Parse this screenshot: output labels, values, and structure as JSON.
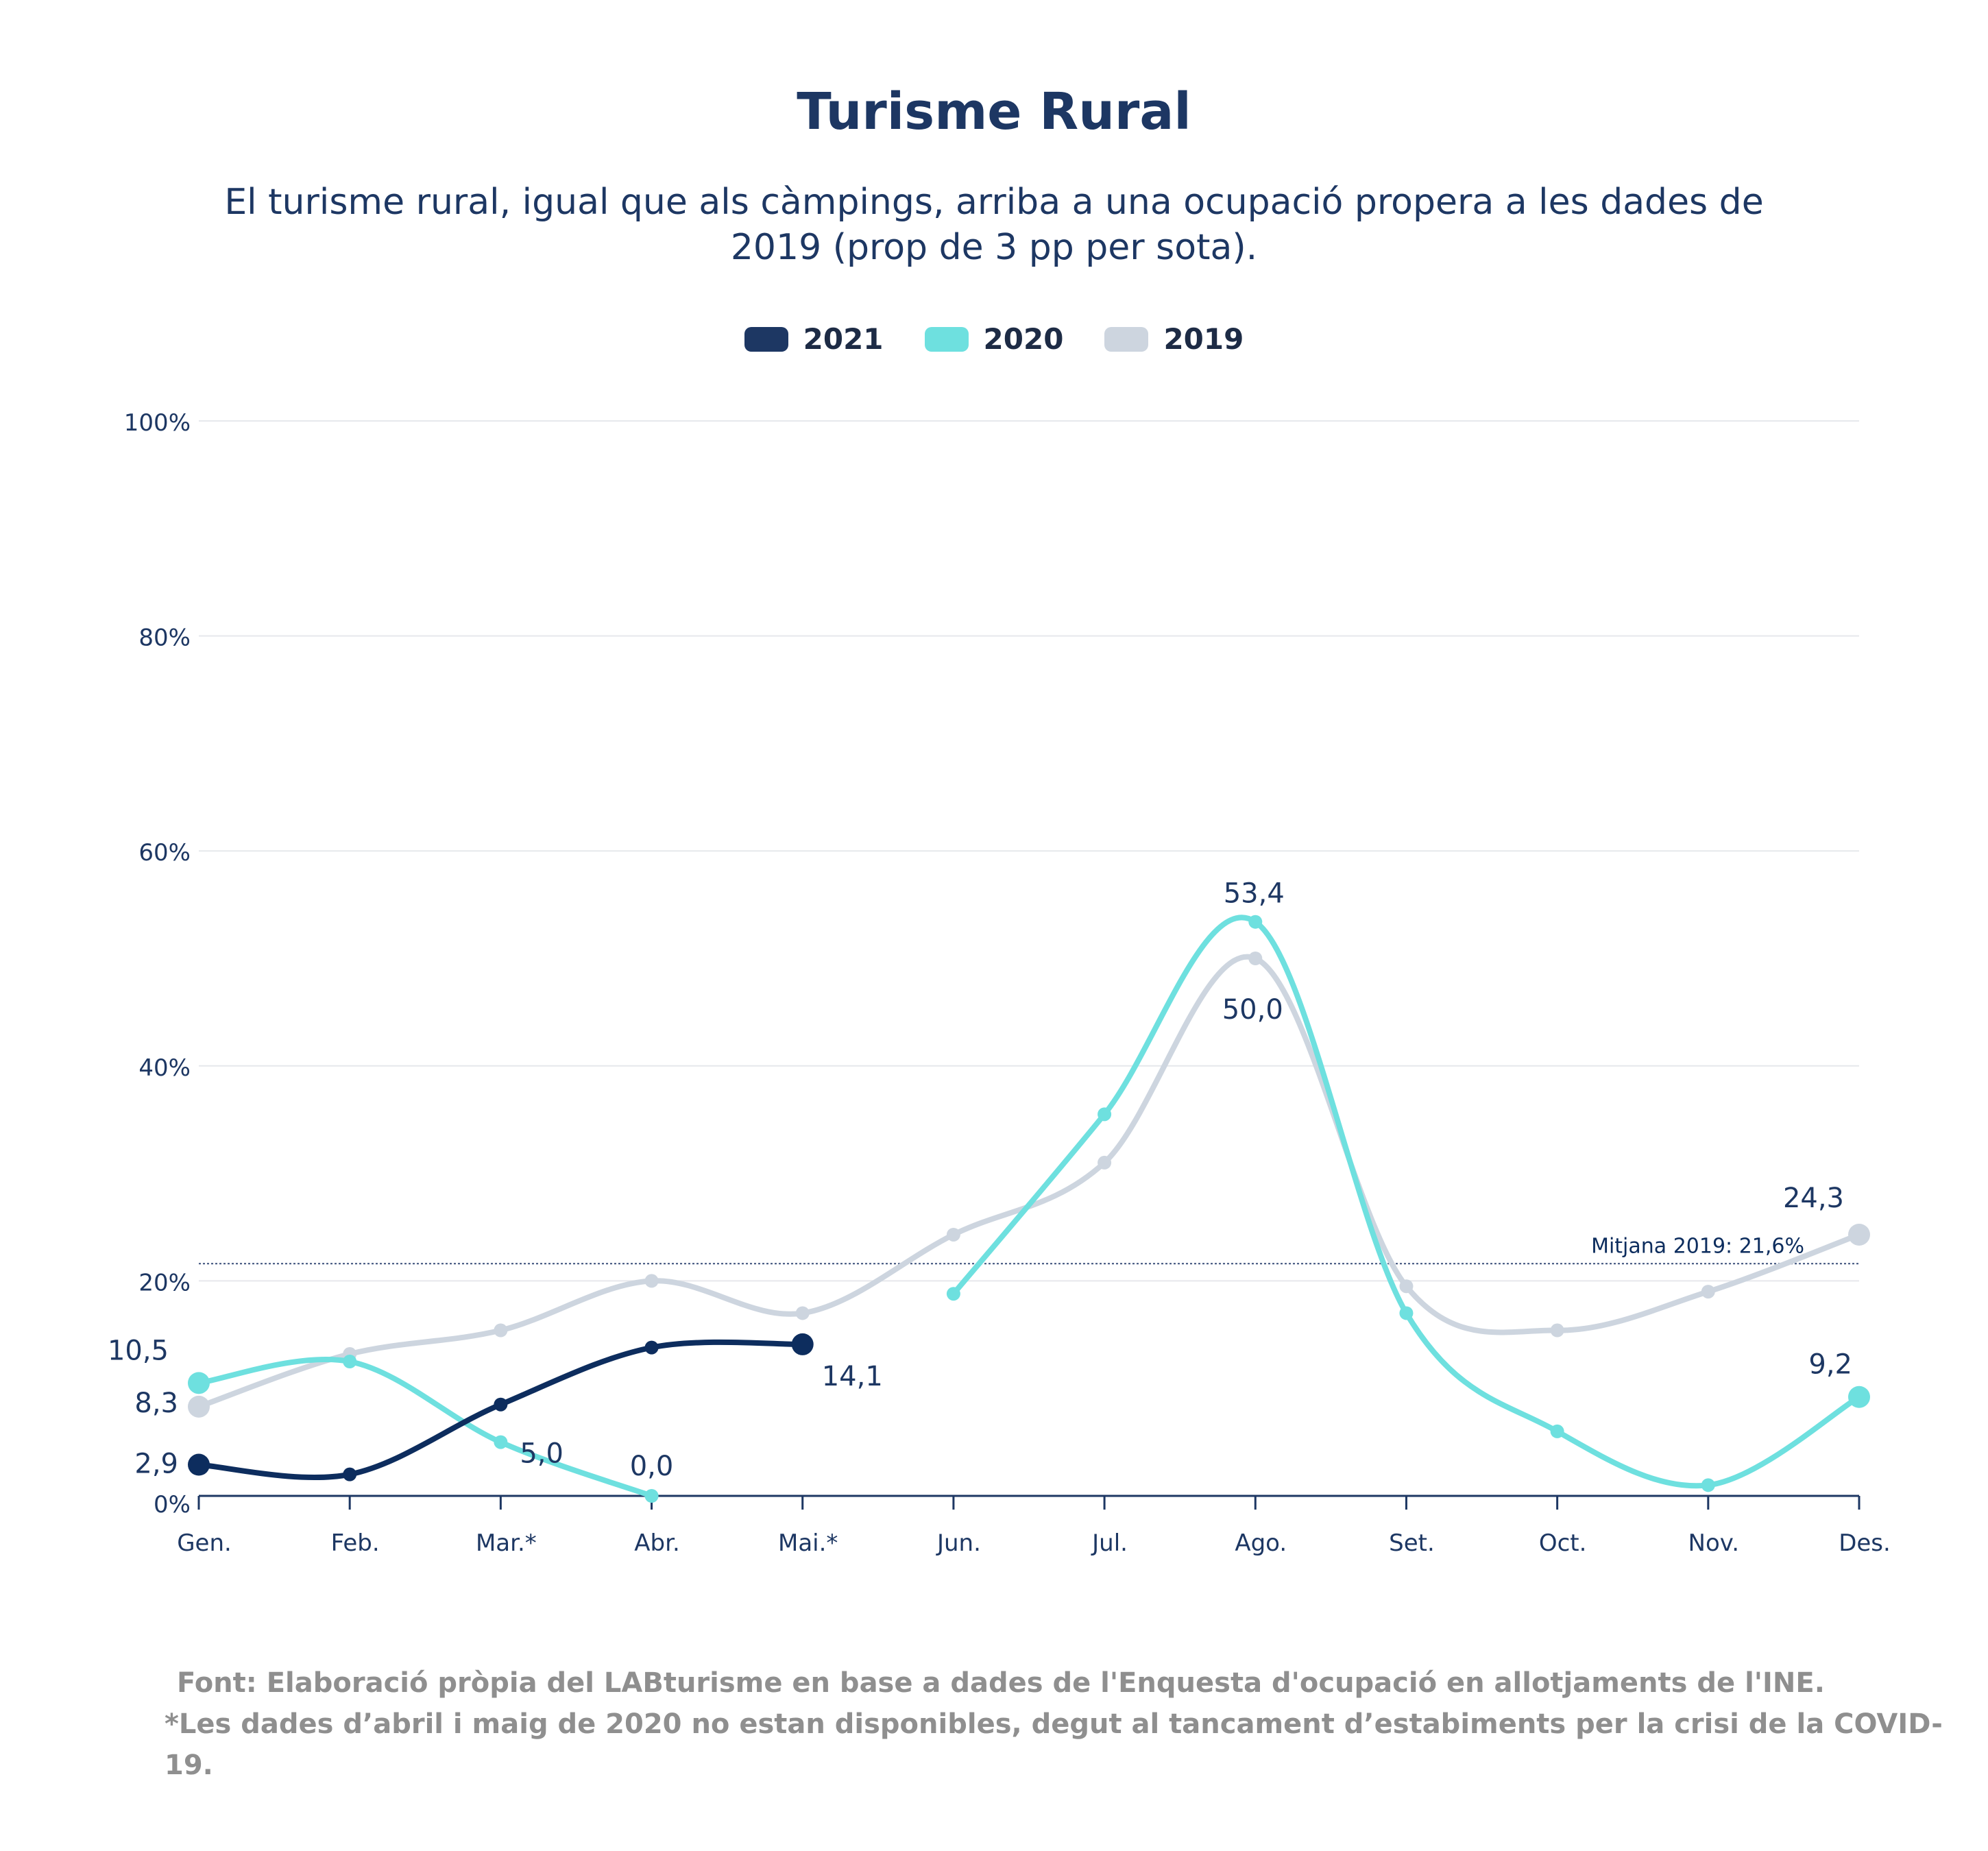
{
  "title": "Turisme Rural",
  "subtitle": "El turisme rural, igual que als càmpings, arriba a una ocupació propera a les dades de 2019 (prop de 3 pp per sota).",
  "legend": [
    {
      "label": "2021",
      "color": "#1d3763"
    },
    {
      "label": "2020",
      "color": "#6ee0df"
    },
    {
      "label": "2019",
      "color": "#cdd5df"
    }
  ],
  "footer": {
    "source": "Font: Elaboració pròpia del LABturisme en base a dades de l'Enquesta d'ocupació en allotjaments de l'INE.",
    "note": "*Les dades d’abril i maig de 2020 no estan disponibles, degut al tancament d’estabiments per la crisi de la COVID-19."
  },
  "chart_data": {
    "type": "line",
    "x": [
      "Gen.",
      "Feb.",
      "Mar.*",
      "Abr.",
      "Mai.*",
      "Jun.",
      "Jul.",
      "Ago.",
      "Set.",
      "Oct.",
      "Nov.",
      "Des."
    ],
    "ylim": [
      0,
      100
    ],
    "yticks": [
      "0%",
      "20%",
      "40%",
      "60%",
      "80%",
      "100%"
    ],
    "grid": true,
    "legend_position": "top-center",
    "series": [
      {
        "name": "2019",
        "color": "#cdd5df",
        "values": [
          8.3,
          13.2,
          15.4,
          20.0,
          17.0,
          24.3,
          31.0,
          50.0,
          19.5,
          15.4,
          19.0,
          24.3
        ]
      },
      {
        "name": "2020",
        "color": "#6ee0df",
        "values": [
          10.5,
          12.5,
          5.0,
          0.0,
          null,
          18.8,
          35.5,
          53.4,
          17.0,
          6.0,
          1.0,
          9.2
        ]
      },
      {
        "name": "2021",
        "color": "#0d2d5e",
        "values": [
          2.9,
          2.0,
          8.5,
          13.8,
          14.1,
          null,
          null,
          null,
          null,
          null,
          null,
          null
        ]
      }
    ],
    "labels": [
      {
        "series": "2020",
        "x": "Gen.",
        "text": "10,5"
      },
      {
        "series": "2019",
        "x": "Gen.",
        "text": "8,3"
      },
      {
        "series": "2021",
        "x": "Gen.",
        "text": "2,9"
      },
      {
        "series": "2020",
        "x": "Mar.*",
        "text": "5,0"
      },
      {
        "series": "2020",
        "x": "Abr.",
        "text": "0,0"
      },
      {
        "series": "2021",
        "x": "Mai.*",
        "text": "14,1"
      },
      {
        "series": "2020",
        "x": "Ago.",
        "text": "53,4"
      },
      {
        "series": "2019",
        "x": "Ago.",
        "text": "50,0"
      },
      {
        "series": "2019",
        "x": "Des.",
        "text": "24,3"
      },
      {
        "series": "2020",
        "x": "Des.",
        "text": "9,2"
      }
    ],
    "reference_line": {
      "value": 21.6,
      "label": "Mitjana 2019: 21,6%"
    }
  }
}
